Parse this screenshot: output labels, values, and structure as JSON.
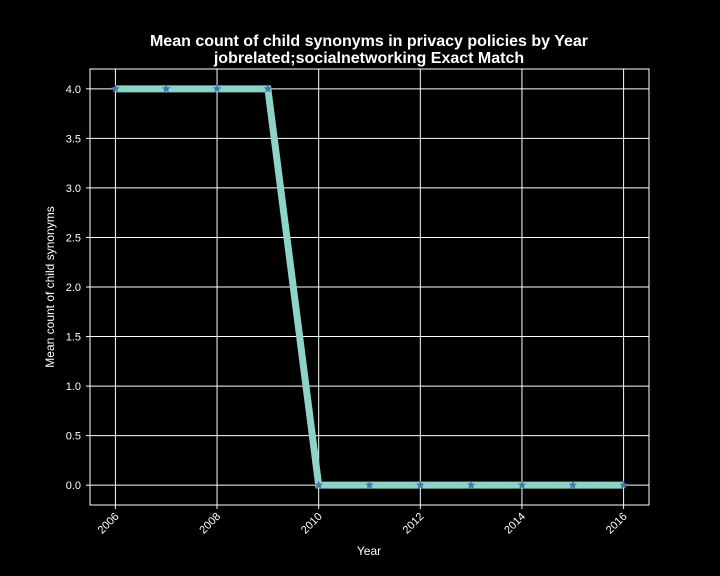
{
  "chart_data": {
    "type": "line",
    "title": "Mean count of child synonyms in privacy policies by Year",
    "subtitle": "jobrelated;socialnetworking Exact Match",
    "xlabel": "Year",
    "ylabel": "Mean count of child synonyms",
    "x": [
      2006,
      2007,
      2008,
      2009,
      2010,
      2011,
      2012,
      2013,
      2014,
      2015,
      2016
    ],
    "series": [
      {
        "values": [
          4,
          4,
          4,
          4,
          0,
          0,
          0,
          0,
          0,
          0,
          0
        ]
      }
    ],
    "xlim": [
      2005.5,
      2016.5
    ],
    "ylim": [
      -0.2,
      4.2
    ],
    "xticks": [
      "2006",
      "2008",
      "2010",
      "2012",
      "2014",
      "2016"
    ],
    "yticks": [
      "0.0",
      "0.5",
      "1.0",
      "1.5",
      "2.0",
      "2.5",
      "3.0",
      "3.5",
      "4.0"
    ],
    "grid": true,
    "line_color": "#8dd3c7",
    "marker": "star",
    "marker_color": "#4c72b0",
    "background": "#000000",
    "axes_color": "#ffffff"
  }
}
